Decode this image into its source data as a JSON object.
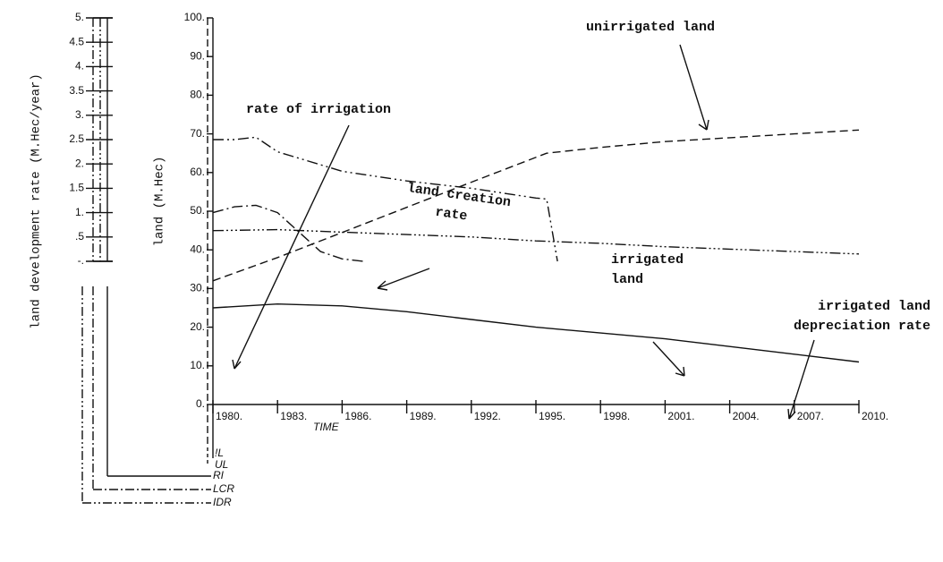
{
  "chart_data": {
    "type": "line",
    "xlabel": "TIME",
    "ylabel": "land (M.Hec)",
    "y2label": "land development rate (M.Hec/year)",
    "xlim": [
      1980,
      2010
    ],
    "xticks": [
      {
        "value": 1980,
        "label": "1980."
      },
      {
        "value": 1983,
        "label": "1983."
      },
      {
        "value": 1986,
        "label": "1986."
      },
      {
        "value": 1989,
        "label": "1989."
      },
      {
        "value": 1992,
        "label": "1992."
      },
      {
        "value": 1995,
        "label": "1995."
      },
      {
        "value": 1998,
        "label": "1998."
      },
      {
        "value": 2001,
        "label": "2001."
      },
      {
        "value": 2004,
        "label": "2004."
      },
      {
        "value": 2007,
        "label": "2007."
      },
      {
        "value": 2010,
        "label": "2010."
      }
    ],
    "ylim": [
      0,
      100
    ],
    "yticks": [
      {
        "value": 0,
        "label": "0."
      },
      {
        "value": 10,
        "label": "10."
      },
      {
        "value": 20,
        "label": "20."
      },
      {
        "value": 30,
        "label": "30."
      },
      {
        "value": 40,
        "label": "40."
      },
      {
        "value": 50,
        "label": "50."
      },
      {
        "value": 60,
        "label": "60."
      },
      {
        "value": 70,
        "label": "70."
      },
      {
        "value": 80,
        "label": "80."
      },
      {
        "value": 90,
        "label": "90."
      },
      {
        "value": 100,
        "label": "100."
      }
    ],
    "y2lim": [
      0,
      5
    ],
    "y2ticks": [
      {
        "value": 0,
        "label": "-."
      },
      {
        "value": 0.5,
        "label": ".5"
      },
      {
        "value": 1,
        "label": "1."
      },
      {
        "value": 1.5,
        "label": "1.5"
      },
      {
        "value": 2,
        "label": "2."
      },
      {
        "value": 2.5,
        "label": "2.5"
      },
      {
        "value": 3,
        "label": "3."
      },
      {
        "value": 3.5,
        "label": "3.5"
      },
      {
        "value": 4,
        "label": "4."
      },
      {
        "value": 4.5,
        "label": "4.5"
      },
      {
        "value": 5,
        "label": "5."
      }
    ],
    "series": [
      {
        "name": "!L",
        "color": "#111111",
        "linestyle": "solid",
        "x": [
          1980,
          1983,
          1986,
          1989,
          1992,
          1995,
          1998,
          2001,
          2004,
          2007,
          2010
        ],
        "values": [
          25,
          26,
          25.5,
          24,
          22,
          20,
          18.5,
          17,
          15,
          13,
          11
        ]
      },
      {
        "name": "UL",
        "color": "#111111",
        "linestyle": "dashed",
        "x": [
          1980,
          1983,
          1986,
          1989,
          1992,
          1995.5,
          1998,
          2001,
          2004,
          2007,
          2010
        ],
        "values": [
          32,
          38,
          44.5,
          51,
          57.5,
          65,
          66.5,
          68,
          69,
          70,
          71
        ]
      },
      {
        "name": "RI",
        "color": "#111111",
        "linestyle": "dashdot",
        "axis": "y2",
        "x": [
          1980,
          1981,
          1982,
          1983,
          1984,
          1985,
          1986,
          1987
        ],
        "values": [
          1.0,
          1.12,
          1.15,
          1.0,
          0.6,
          0.2,
          0.05,
          0
        ]
      },
      {
        "name": "LCR",
        "color": "#111111",
        "linestyle": "dashdotdot",
        "axis": "y2",
        "x": [
          1980,
          1981,
          1982,
          1983,
          1986,
          1989,
          1992,
          1995,
          1995.5,
          1996
        ],
        "values": [
          2.5,
          2.5,
          2.55,
          2.25,
          1.85,
          1.65,
          1.5,
          1.3,
          1.28,
          0
        ]
      },
      {
        "name": "IDR",
        "color": "#111111",
        "linestyle": "dashdotdotdot",
        "axis": "y2",
        "x": [
          1980,
          1983,
          1986,
          1989,
          1992,
          1995,
          1998,
          2001,
          2004,
          2007,
          2010
        ],
        "values": [
          0.63,
          0.65,
          0.6,
          0.55,
          0.5,
          0.42,
          0.37,
          0.3,
          0.25,
          0.2,
          0.15
        ]
      }
    ],
    "annotations": [
      {
        "lines": [
          "rate of irrigation"
        ]
      },
      {
        "lines": [
          "unirrigated land"
        ]
      },
      {
        "lines": [
          "land creation",
          "rate"
        ]
      },
      {
        "lines": [
          "irrigated",
          "land"
        ]
      },
      {
        "lines": [
          "irrigated land",
          "depreciation rate"
        ]
      }
    ]
  }
}
